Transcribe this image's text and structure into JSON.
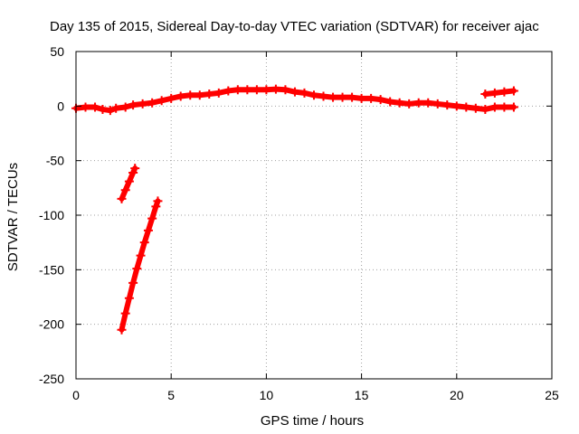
{
  "chart_data": {
    "type": "scatter",
    "title": "Day 135 of 2015, Sidereal Day-to-day VTEC variation (SDTVAR) for receiver ajac",
    "xlabel": "GPS time / hours",
    "ylabel": "SDTVAR / TECUs",
    "xlim": [
      0,
      25
    ],
    "ylim": [
      -250,
      50
    ],
    "xticks": [
      "0",
      "5",
      "10",
      "15",
      "20",
      "25"
    ],
    "yticks": [
      "50",
      "0",
      "-50",
      "-100",
      "-150",
      "-200",
      "-250"
    ],
    "grid": true,
    "legend": "none",
    "series": [
      {
        "color": "#ff0000",
        "points": [
          [
            0.0,
            -2
          ],
          [
            0.5,
            -1
          ],
          [
            1.0,
            -1
          ],
          [
            1.4,
            -3
          ],
          [
            1.8,
            -4
          ],
          [
            2.1,
            -2
          ],
          [
            2.6,
            -1
          ],
          [
            3.0,
            1
          ],
          [
            3.5,
            2
          ],
          [
            4.0,
            3
          ],
          [
            4.5,
            5
          ],
          [
            5.0,
            7
          ],
          [
            5.5,
            9
          ],
          [
            6.0,
            10
          ],
          [
            6.5,
            10
          ],
          [
            7.0,
            11
          ],
          [
            7.5,
            12
          ],
          [
            8.0,
            14
          ],
          [
            8.5,
            15
          ],
          [
            9.0,
            15
          ],
          [
            9.5,
            15
          ],
          [
            10.0,
            15
          ],
          [
            10.5,
            15.5
          ],
          [
            11.0,
            15
          ],
          [
            11.5,
            13
          ],
          [
            12.0,
            12
          ],
          [
            12.5,
            10
          ],
          [
            13.0,
            9
          ],
          [
            13.5,
            8
          ],
          [
            14.0,
            8
          ],
          [
            14.5,
            8
          ],
          [
            15.0,
            7
          ],
          [
            15.5,
            7
          ],
          [
            16.0,
            6
          ],
          [
            16.5,
            4
          ],
          [
            17.0,
            3
          ],
          [
            17.5,
            2
          ],
          [
            18.0,
            3
          ],
          [
            18.5,
            3
          ],
          [
            19.0,
            2
          ],
          [
            19.5,
            1
          ],
          [
            20.0,
            0
          ],
          [
            20.5,
            -1
          ],
          [
            21.0,
            -2
          ],
          [
            21.5,
            -3
          ],
          [
            22.0,
            -1
          ],
          [
            22.5,
            -1
          ],
          [
            23.0,
            -1
          ]
        ]
      },
      {
        "color": "#ff0000",
        "points": [
          [
            21.5,
            11
          ],
          [
            22.0,
            12
          ],
          [
            22.5,
            13
          ],
          [
            23.0,
            14
          ]
        ]
      },
      {
        "color": "#ff0000",
        "points": [
          [
            2.4,
            -85
          ],
          [
            2.6,
            -77
          ],
          [
            2.8,
            -69
          ],
          [
            3.0,
            -61
          ],
          [
            3.1,
            -57
          ]
        ]
      },
      {
        "color": "#ff0000",
        "points": [
          [
            2.4,
            -205
          ],
          [
            2.6,
            -190
          ],
          [
            2.8,
            -176
          ],
          [
            3.0,
            -162
          ],
          [
            3.2,
            -149
          ],
          [
            3.4,
            -137
          ],
          [
            3.6,
            -125
          ],
          [
            3.8,
            -114
          ],
          [
            4.0,
            -103
          ],
          [
            4.2,
            -92
          ],
          [
            4.3,
            -87
          ]
        ]
      }
    ]
  }
}
